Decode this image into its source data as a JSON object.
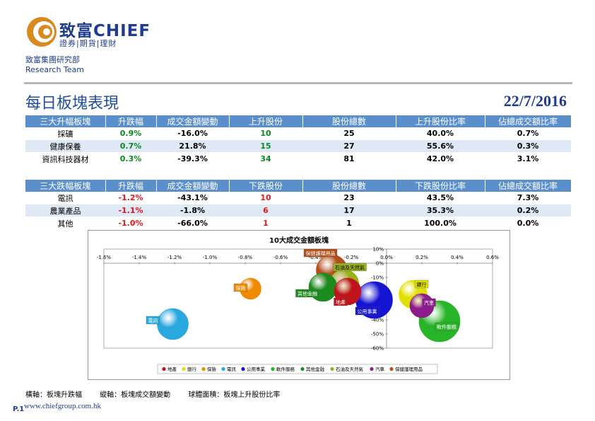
{
  "header": {
    "brand_cn": "致富",
    "brand_en": "CHIEF",
    "tagline": "證券|期貨|理財",
    "dept_cn": "致富集團研究部",
    "dept_en": "Research Team"
  },
  "title": "每日板塊表現",
  "date": "22/7/2016",
  "rise_table": {
    "headers": [
      "三大升幅板塊",
      "升跌幅",
      "成交金額變動",
      "上升股份",
      "股份總數",
      "上升股份比率",
      "佔總成交額比率"
    ],
    "rows": [
      {
        "name": "採礦",
        "change": "0.9%",
        "turnover_change": "-16.0%",
        "count": "10",
        "total": "25",
        "ratio": "40.0%",
        "share": "0.7%"
      },
      {
        "name": "健康保養",
        "change": "0.7%",
        "turnover_change": "21.8%",
        "count": "15",
        "total": "27",
        "ratio": "55.6%",
        "share": "0.3%"
      },
      {
        "name": "資訊科技器材",
        "change": "0.3%",
        "turnover_change": "-39.3%",
        "count": "34",
        "total": "81",
        "ratio": "42.0%",
        "share": "3.1%"
      }
    ]
  },
  "fall_table": {
    "headers": [
      "三大跌幅板塊",
      "升跌幅",
      "成交金額變動",
      "下跌股份",
      "股份總數",
      "下跌股份比率",
      "佔總成交額比率"
    ],
    "rows": [
      {
        "name": "電訊",
        "change": "-1.2%",
        "turnover_change": "-43.1%",
        "count": "10",
        "total": "23",
        "ratio": "43.5%",
        "share": "7.3%"
      },
      {
        "name": "農業產品",
        "change": "-1.1%",
        "turnover_change": "-1.8%",
        "count": "6",
        "total": "17",
        "ratio": "35.3%",
        "share": "0.2%"
      },
      {
        "name": "其他",
        "change": "-1.0%",
        "turnover_change": "-66.0%",
        "count": "1",
        "total": "1",
        "ratio": "100.0%",
        "share": "0.0%"
      }
    ]
  },
  "chart_data": {
    "type": "scatter",
    "title": "10大成交金額板塊",
    "xlim": [
      -1.6,
      0.6
    ],
    "ylim": [
      -60,
      10
    ],
    "x_ticks": [
      "-1.6%",
      "-1.4%",
      "-1.2%",
      "-1.0%",
      "-0.8%",
      "-0.6%",
      "-0.4%",
      "-0.2%",
      "0.0%",
      "0.2%",
      "0.4%",
      "0.6%"
    ],
    "y_ticks": [
      "10%",
      "0%",
      "-10%",
      "-20%",
      "-30%",
      "-40%",
      "-50%",
      "-60%"
    ],
    "legend_position": "bottom",
    "grid": false,
    "series": [
      {
        "name": "地產",
        "x": -0.22,
        "y": -20,
        "size": 38,
        "color": "#c0141c"
      },
      {
        "name": "銀行",
        "x": 0.15,
        "y": -22,
        "size": 40,
        "color": "#e0e000"
      },
      {
        "name": "保險",
        "x": -0.77,
        "y": -18,
        "size": 30,
        "color": "#f08a00"
      },
      {
        "name": "電訊",
        "x": -1.21,
        "y": -43,
        "size": 44,
        "color": "#29a7df"
      },
      {
        "name": "公用事業",
        "x": -0.07,
        "y": -26,
        "size": 52,
        "color": "#1414d2"
      },
      {
        "name": "軟件服務",
        "x": 0.3,
        "y": -41,
        "size": 58,
        "color": "#28b428"
      },
      {
        "name": "其他金融",
        "x": -0.36,
        "y": -17,
        "size": 40,
        "color": "#1c8a1c"
      },
      {
        "name": "石油及天然氣",
        "x": -0.24,
        "y": -15,
        "size": 42,
        "color": "#98b01c"
      },
      {
        "name": "汽車",
        "x": 0.2,
        "y": -30,
        "size": 34,
        "color": "#8c1c8c"
      },
      {
        "name": "保健護理用品",
        "x": -0.31,
        "y": -5,
        "size": 44,
        "color": "#b2501c"
      }
    ]
  },
  "footnote": {
    "x_axis": "橫軸：板塊升跌幅",
    "y_axis": "縱軸：板塊成交額變動",
    "bubble": "球體面積：板塊上升股份比率"
  },
  "footer": {
    "page": "P.1",
    "website": "www.chiefgroup.com.hk"
  }
}
